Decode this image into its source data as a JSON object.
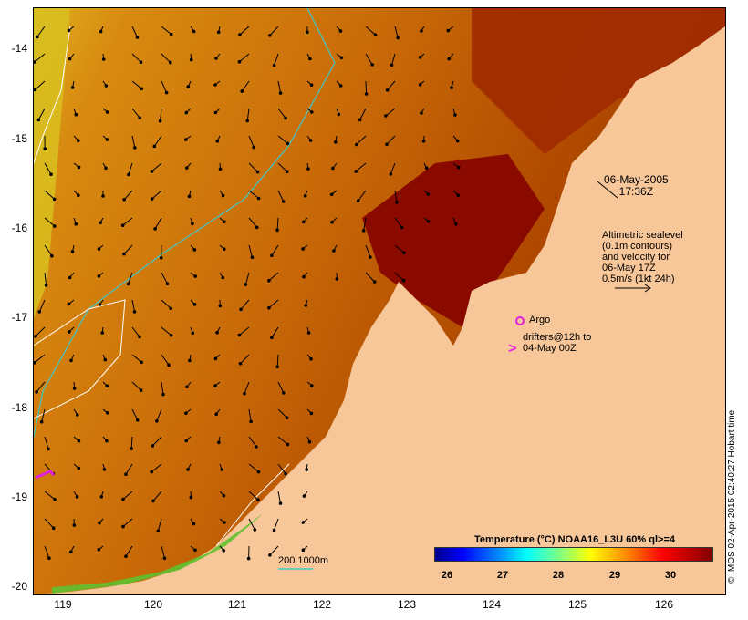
{
  "axes": {
    "y_ticks": [
      "-14",
      "-15",
      "-16",
      "-17",
      "-18",
      "-19",
      "-20"
    ],
    "x_ticks": [
      "119",
      "120",
      "121",
      "122",
      "123",
      "124",
      "125",
      "126"
    ]
  },
  "annotations": {
    "date_line1": "06-May-2005",
    "date_line2": "17:36Z",
    "altimetry_lines": [
      "Altimetric sealevel",
      "(0.1m contours)",
      "and velocity for",
      "06-May 17Z",
      "0.5m/s (1kt 24h)"
    ],
    "argo": "Argo",
    "drifter_line1": "drifters@12h to",
    "drifter_line2": "04-May 00Z",
    "scale": "200  1000m"
  },
  "legend": {
    "title": "Temperature (°C) NOAA16_L3U 60% ql>=4",
    "ticks": [
      "26",
      "27",
      "28",
      "29",
      "30"
    ]
  },
  "credit": "© IMOS 02-Apr-2015 02:40:27 Hobart time",
  "colors": {
    "land": "#f7c79a",
    "sst_warm": "#8b0a00",
    "sst_mid": "#c05a00",
    "sst_cool": "#d88a10",
    "isobath_200": "#40c8c8",
    "isobath_1000": "#ffffff",
    "argo": "#e020e0",
    "drifter": "#e020e0"
  }
}
